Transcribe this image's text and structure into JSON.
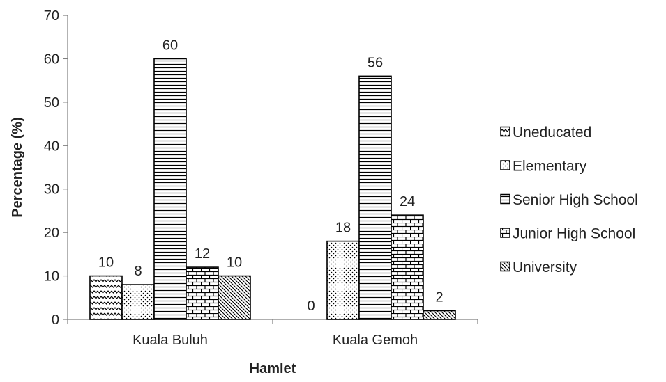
{
  "chart_data": {
    "type": "bar",
    "title": "",
    "xlabel": "Hamlet",
    "ylabel": "Percentage (%)",
    "ylim": [
      0,
      70
    ],
    "yticks": [
      0,
      10,
      20,
      30,
      40,
      50,
      60,
      70
    ],
    "categories": [
      "Kuala Buluh",
      "Kuala Gemoh"
    ],
    "series": [
      {
        "name": "Uneducated",
        "values": [
          10,
          0
        ],
        "pattern": "zigzag"
      },
      {
        "name": "Elementary",
        "values": [
          8,
          18
        ],
        "pattern": "dots"
      },
      {
        "name": "Senior High School",
        "values": [
          60,
          56
        ],
        "pattern": "hlines"
      },
      {
        "name": "Junior High School",
        "values": [
          12,
          24
        ],
        "pattern": "bricks"
      },
      {
        "name": "University",
        "values": [
          10,
          2
        ],
        "pattern": "diagonal"
      }
    ],
    "legend_position": "right",
    "grid": false,
    "show_data_labels": true
  }
}
